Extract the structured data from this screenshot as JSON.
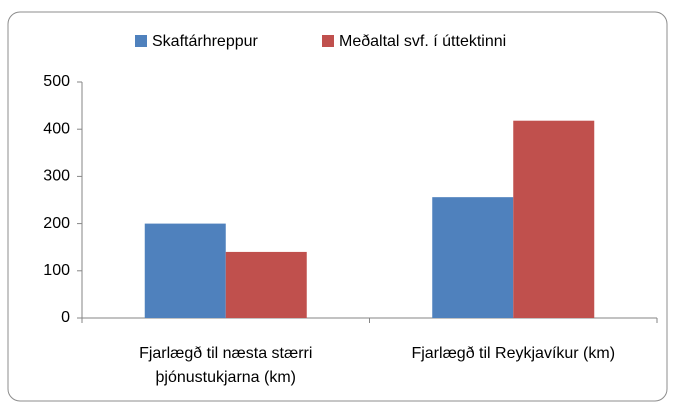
{
  "chart_data": {
    "type": "bar",
    "categories": [
      "Fjarlægð til næsta stærri þjónustukjarna (km)",
      "Fjarlægð til Reykjavíkur (km)"
    ],
    "series": [
      {
        "name": "Skaftárhreppur",
        "color": "#4f81bd",
        "values": [
          200,
          256
        ]
      },
      {
        "name": "Meðaltal svf. í úttektinni",
        "color": "#c0504d",
        "values": [
          140,
          418
        ]
      }
    ],
    "ylim": [
      0,
      500
    ],
    "yticks": [
      0,
      100,
      200,
      300,
      400,
      500
    ],
    "grid": false,
    "legend": "top"
  }
}
